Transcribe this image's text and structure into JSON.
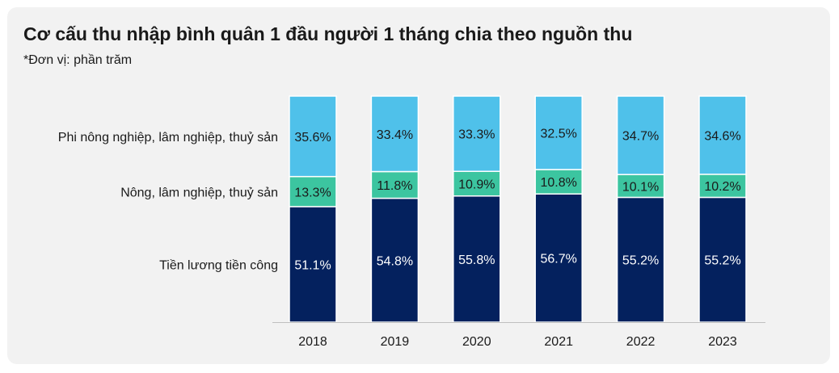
{
  "chart_data": {
    "type": "bar",
    "stacked": true,
    "normalized": true,
    "title": "Cơ cấu thu nhập bình quân 1 đầu người 1 tháng chia theo nguồn thu",
    "subtitle": "*Đơn vị: phần trăm",
    "categories": [
      "2018",
      "2019",
      "2020",
      "2021",
      "2022",
      "2023"
    ],
    "series": [
      {
        "name": "Tiền lương tiền công",
        "values": [
          51.1,
          54.8,
          55.8,
          56.7,
          55.2,
          55.2
        ],
        "labels": [
          "51.1%",
          "54.8%",
          "55.8%",
          "56.7%",
          "55.2%",
          "55.2%"
        ],
        "color": "#04215e",
        "label_color": "#ffffff"
      },
      {
        "name": "Nông, lâm nghiệp, thuỷ sản",
        "values": [
          13.3,
          11.8,
          10.9,
          10.8,
          10.1,
          10.2
        ],
        "labels": [
          "13.3%",
          "11.8%",
          "10.9%",
          "10.8%",
          "10.1%",
          "10.2%"
        ],
        "color": "#3cc5a0",
        "label_color": "#1a1a1a"
      },
      {
        "name": "Phi nông nghiệp, lâm nghiệp, thuỷ sản",
        "values": [
          35.6,
          33.4,
          33.3,
          32.5,
          34.7,
          34.6
        ],
        "labels": [
          "35.6%",
          "33.4%",
          "33.3%",
          "32.5%",
          "34.7%",
          "34.6%"
        ],
        "color": "#4fc1ea",
        "label_color": "#1a1a1a"
      }
    ],
    "legend_position": "left, aligned with first bar segments",
    "ylim": [
      0,
      100
    ],
    "grid": false
  }
}
